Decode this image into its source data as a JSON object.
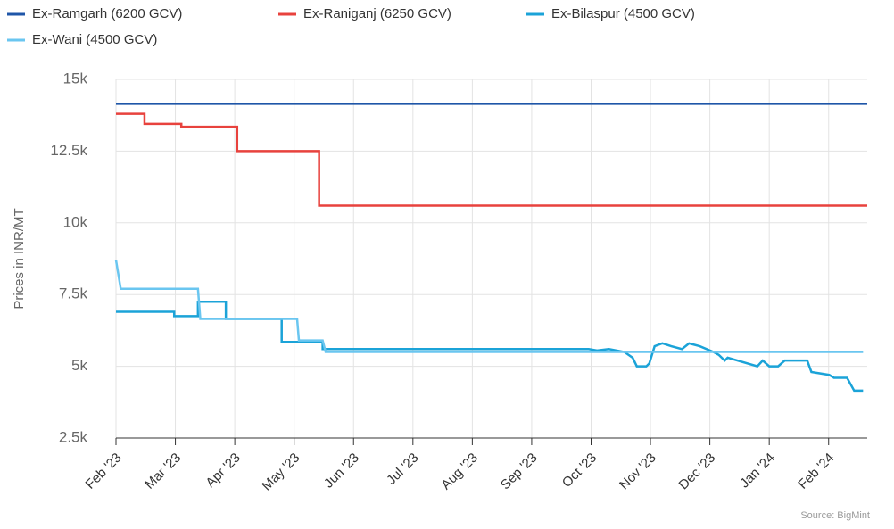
{
  "chart_data": {
    "type": "line",
    "y_label": "Prices in INR/MT",
    "source": "Source: BigMint",
    "xlim": [
      0,
      12.65
    ],
    "xticks": [
      {
        "value": 0,
        "label": "Feb '23"
      },
      {
        "value": 1,
        "label": "Mar '23"
      },
      {
        "value": 2,
        "label": "Apr '23"
      },
      {
        "value": 3,
        "label": "May '23"
      },
      {
        "value": 4,
        "label": "Jun '23"
      },
      {
        "value": 5,
        "label": "Jul '23"
      },
      {
        "value": 6,
        "label": "Aug '23"
      },
      {
        "value": 7,
        "label": "Sep '23"
      },
      {
        "value": 8,
        "label": "Oct '23"
      },
      {
        "value": 9,
        "label": "Nov '23"
      },
      {
        "value": 10,
        "label": "Dec '23"
      },
      {
        "value": 11,
        "label": "Jan '24"
      },
      {
        "value": 12,
        "label": "Feb '24"
      }
    ],
    "ylim": [
      2500,
      15000
    ],
    "yticks": [
      {
        "value": 2500,
        "label": "2.5k"
      },
      {
        "value": 5000,
        "label": "5k"
      },
      {
        "value": 7500,
        "label": "7.5k"
      },
      {
        "value": 10000,
        "label": "10k"
      },
      {
        "value": 12500,
        "label": "12.5k"
      },
      {
        "value": 15000,
        "label": "15k"
      }
    ],
    "grid": true,
    "legend": "top",
    "series": [
      {
        "name": "Ex-Ramgarh (6200 GCV)",
        "color": "#1f56a8",
        "x": [
          0,
          12.65
        ],
        "values": [
          14150,
          14150
        ]
      },
      {
        "name": "Ex-Raniganj (6250 GCV)",
        "color": "#e8423d",
        "x": [
          0,
          0.48,
          0.48,
          1.1,
          1.1,
          2.04,
          2.04,
          3.42,
          3.42,
          12.65
        ],
        "values": [
          13800,
          13800,
          13450,
          13450,
          13350,
          13350,
          12500,
          12500,
          10600,
          10600
        ]
      },
      {
        "name": "Ex-Bilaspur (4500 GCV)",
        "color": "#1ba3d8",
        "x": [
          0,
          0.98,
          0.98,
          1.38,
          1.38,
          1.85,
          1.85,
          2.79,
          2.79,
          3.48,
          3.48,
          7.96,
          8.1,
          8.3,
          8.56,
          8.7,
          8.77,
          8.93,
          8.98,
          9.07,
          9.2,
          9.35,
          9.53,
          9.65,
          9.83,
          10.06,
          10.15,
          10.25,
          10.3,
          10.8,
          10.89,
          11.0,
          11.15,
          11.26,
          11.64,
          11.71,
          12.01,
          12.09,
          12.31,
          12.43,
          12.58
        ],
        "values": [
          6900,
          6900,
          6750,
          6750,
          7250,
          7250,
          6650,
          6650,
          5850,
          5850,
          5600,
          5600,
          5550,
          5600,
          5500,
          5300,
          5000,
          5000,
          5100,
          5700,
          5800,
          5700,
          5600,
          5800,
          5700,
          5500,
          5400,
          5200,
          5300,
          5000,
          5200,
          5000,
          5000,
          5200,
          5200,
          4800,
          4700,
          4600,
          4600,
          4150,
          4150
        ]
      },
      {
        "name": "Ex-Wani (4500 GCV)",
        "color": "#6ac6f0",
        "x": [
          0,
          0.08,
          1.38,
          1.42,
          3.05,
          3.08,
          3.48,
          3.53,
          12.58
        ],
        "values": [
          8700,
          7700,
          7700,
          6650,
          6650,
          5900,
          5900,
          5500,
          5500
        ]
      }
    ]
  }
}
